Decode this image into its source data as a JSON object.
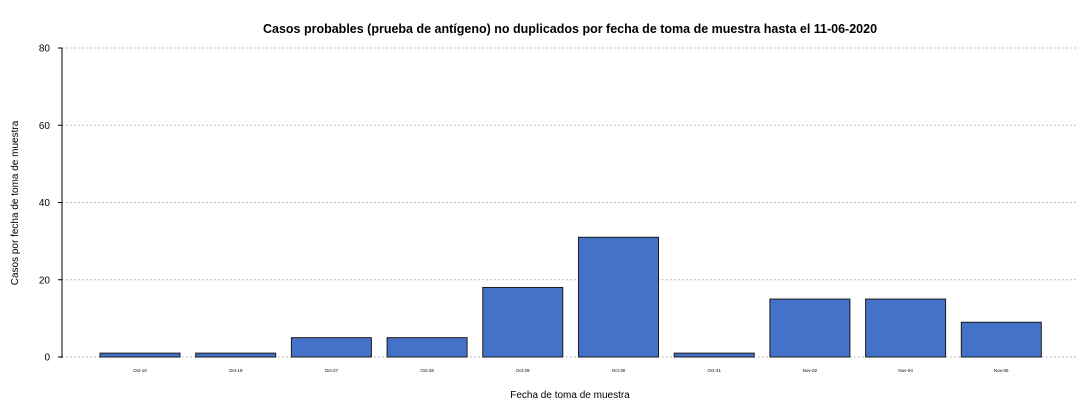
{
  "chart_data": {
    "type": "bar",
    "title": "Casos probables (prueba de antígeno) no duplicados por fecha de toma de muestra hasta el 11-06-2020",
    "xlabel": "Fecha de toma de muestra",
    "ylabel": "Casos por fecha de toma de muestra",
    "categories": [
      "Oct-10",
      "Oct-19",
      "Oct-27",
      "Oct-28",
      "Oct-29",
      "Oct-30",
      "Oct-31",
      "Nov-02",
      "Nov-04",
      "Nov-05"
    ],
    "values": [
      1,
      1,
      5,
      5,
      18,
      31,
      1,
      15,
      15,
      9
    ],
    "ylim": [
      0,
      80
    ],
    "yticks": [
      "0",
      "20",
      "40",
      "60",
      "80"
    ],
    "grid": true,
    "colors": {
      "bar": "#4472c8",
      "bar_border": "#1a1a1a",
      "grid": "#a8a8a8"
    }
  }
}
